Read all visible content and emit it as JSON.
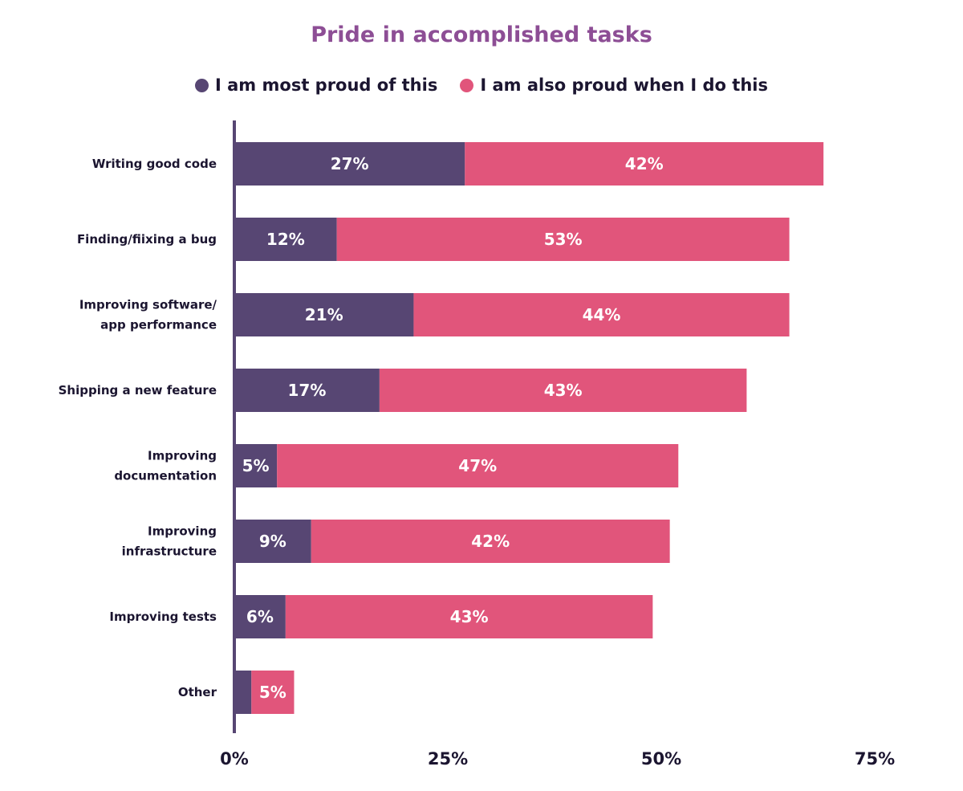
{
  "chart_data": {
    "type": "bar",
    "orientation": "horizontal",
    "stacked": true,
    "title": "Pride in accomplished tasks",
    "categories": [
      "Writing good code",
      "Finding/fiixing a bug",
      "Improving software/\napp performance",
      "Shipping a new feature",
      "Improving\ndocumentation",
      "Improving\ninfrastructure",
      "Improving tests",
      "Other"
    ],
    "series": [
      {
        "name": "I am most proud of this",
        "color": "#574673",
        "values": [
          27,
          12,
          21,
          17,
          5,
          9,
          6,
          2
        ],
        "labels": [
          "27%",
          "12%",
          "21%",
          "17%",
          "5%",
          "9%",
          "6%",
          ""
        ]
      },
      {
        "name": "I am also proud when I do this",
        "color": "#E1557B",
        "values": [
          42,
          53,
          44,
          43,
          47,
          42,
          43,
          5
        ],
        "labels": [
          "42%",
          "53%",
          "44%",
          "43%",
          "47%",
          "42%",
          "43%",
          "5%"
        ]
      }
    ],
    "xlim": [
      0,
      75
    ],
    "xticks": [
      "0%",
      "25%",
      "50%",
      "75%"
    ],
    "xtick_values": [
      0,
      25,
      50,
      75
    ],
    "grid": false,
    "legend": "top-center",
    "title_color": "#8D4E95",
    "text_color": "#1B1530"
  }
}
